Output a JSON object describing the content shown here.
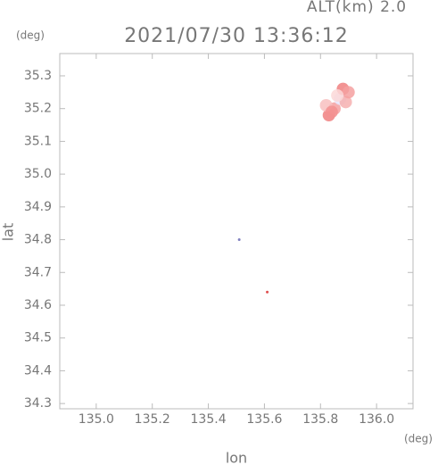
{
  "chart_data": {
    "type": "scatter",
    "header": "ALT(km) 2.0",
    "title": "2021/07/30 13:36:12",
    "y_unit": "(deg)",
    "x_unit": "(deg)",
    "x_label": "lon",
    "y_label": "lat",
    "x": [
      135.83,
      135.85,
      135.82,
      135.87,
      135.89,
      135.88,
      135.9,
      135.86,
      135.84,
      135.51,
      135.61
    ],
    "y": [
      35.18,
      35.2,
      35.21,
      35.23,
      35.22,
      35.26,
      35.25,
      35.24,
      35.19,
      34.8,
      34.64
    ],
    "colors": [
      "#f08080",
      "#f4a0a0",
      "#f8c0c0",
      "#e8e8ff",
      "#f6b0b0",
      "#f08080",
      "#f4a0a0",
      "#fbd8d8",
      "#f39090",
      "#8080c0",
      "#e05050"
    ],
    "xlim": [
      134.87,
      136.13
    ],
    "ylim": [
      34.284,
      35.368
    ],
    "xticks": [
      {
        "value": 135,
        "label": "135.0"
      },
      135.2,
      135.4,
      135.6,
      135.8,
      {
        "value": 136,
        "label": "136.0"
      }
    ],
    "yticks": [
      34.3,
      34.4,
      34.5,
      34.6,
      34.7,
      34.8,
      34.9,
      {
        "value": 35,
        "label": "35.0"
      },
      35.1,
      35.2,
      35.3
    ]
  }
}
